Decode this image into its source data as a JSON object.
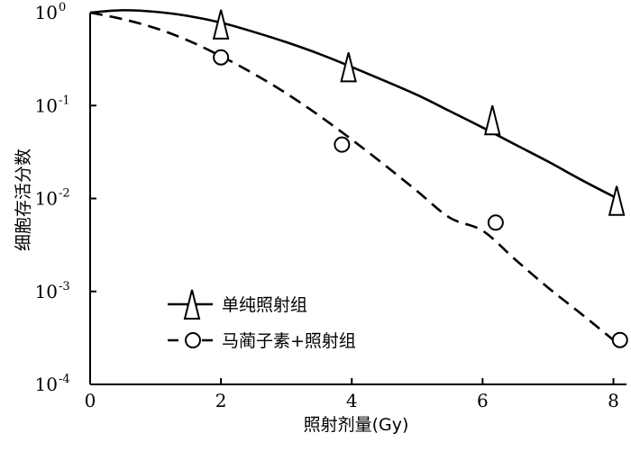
{
  "chart_data": {
    "type": "line",
    "xlabel": "照射剂量(Gy)",
    "ylabel": "细胞存活分数",
    "xlim": [
      0,
      8.2
    ],
    "ylim": [
      0.0001,
      1
    ],
    "yscale": "log",
    "x_ticks": [
      "0",
      "2",
      "4",
      "6",
      "8"
    ],
    "y_ticks": [
      {
        "base": "10",
        "exp": "0"
      },
      {
        "base": "10",
        "exp": "-1"
      },
      {
        "base": "10",
        "exp": "-2"
      },
      {
        "base": "10",
        "exp": "-3"
      },
      {
        "base": "10",
        "exp": "-4"
      }
    ],
    "grid": false,
    "legend_position": "bottom-left",
    "series": [
      {
        "name": "单纯照射组",
        "marker": "triangle",
        "line_style": "solid",
        "points": [
          {
            "x": 2.0,
            "y": 0.75
          },
          {
            "x": 3.95,
            "y": 0.26
          },
          {
            "x": 6.15,
            "y": 0.07
          },
          {
            "x": 8.05,
            "y": 0.0095
          }
        ],
        "fit": [
          {
            "x": 0,
            "y": 1.0
          },
          {
            "x": 0.5,
            "y": 1.06
          },
          {
            "x": 1,
            "y": 1.02
          },
          {
            "x": 1.5,
            "y": 0.92
          },
          {
            "x": 2,
            "y": 0.78
          },
          {
            "x": 2.5,
            "y": 0.62
          },
          {
            "x": 3,
            "y": 0.48
          },
          {
            "x": 3.5,
            "y": 0.36
          },
          {
            "x": 4,
            "y": 0.26
          },
          {
            "x": 4.5,
            "y": 0.185
          },
          {
            "x": 5,
            "y": 0.13
          },
          {
            "x": 5.5,
            "y": 0.087
          },
          {
            "x": 6,
            "y": 0.058
          },
          {
            "x": 6.5,
            "y": 0.038
          },
          {
            "x": 7,
            "y": 0.025
          },
          {
            "x": 7.5,
            "y": 0.016
          },
          {
            "x": 8,
            "y": 0.0105
          }
        ]
      },
      {
        "name": "马蔺子素+照射组",
        "marker": "circle",
        "line_style": "dashed",
        "points": [
          {
            "x": 2.0,
            "y": 0.33
          },
          {
            "x": 3.85,
            "y": 0.038
          },
          {
            "x": 6.2,
            "y": 0.0055
          },
          {
            "x": 8.1,
            "y": 0.0003
          }
        ],
        "fit": [
          {
            "x": 0,
            "y": 1.0
          },
          {
            "x": 0.5,
            "y": 0.85
          },
          {
            "x": 1,
            "y": 0.68
          },
          {
            "x": 1.5,
            "y": 0.5
          },
          {
            "x": 2,
            "y": 0.34
          },
          {
            "x": 2.5,
            "y": 0.22
          },
          {
            "x": 3,
            "y": 0.135
          },
          {
            "x": 3.5,
            "y": 0.078
          },
          {
            "x": 4,
            "y": 0.043
          },
          {
            "x": 4.5,
            "y": 0.023
          },
          {
            "x": 5,
            "y": 0.012
          },
          {
            "x": 5.5,
            "y": 0.0062
          },
          {
            "x": 6,
            "y": 0.0045
          },
          {
            "x": 6.5,
            "y": 0.0022
          },
          {
            "x": 7,
            "y": 0.0011
          },
          {
            "x": 7.5,
            "y": 0.00058
          },
          {
            "x": 8,
            "y": 0.0003
          }
        ]
      }
    ]
  }
}
